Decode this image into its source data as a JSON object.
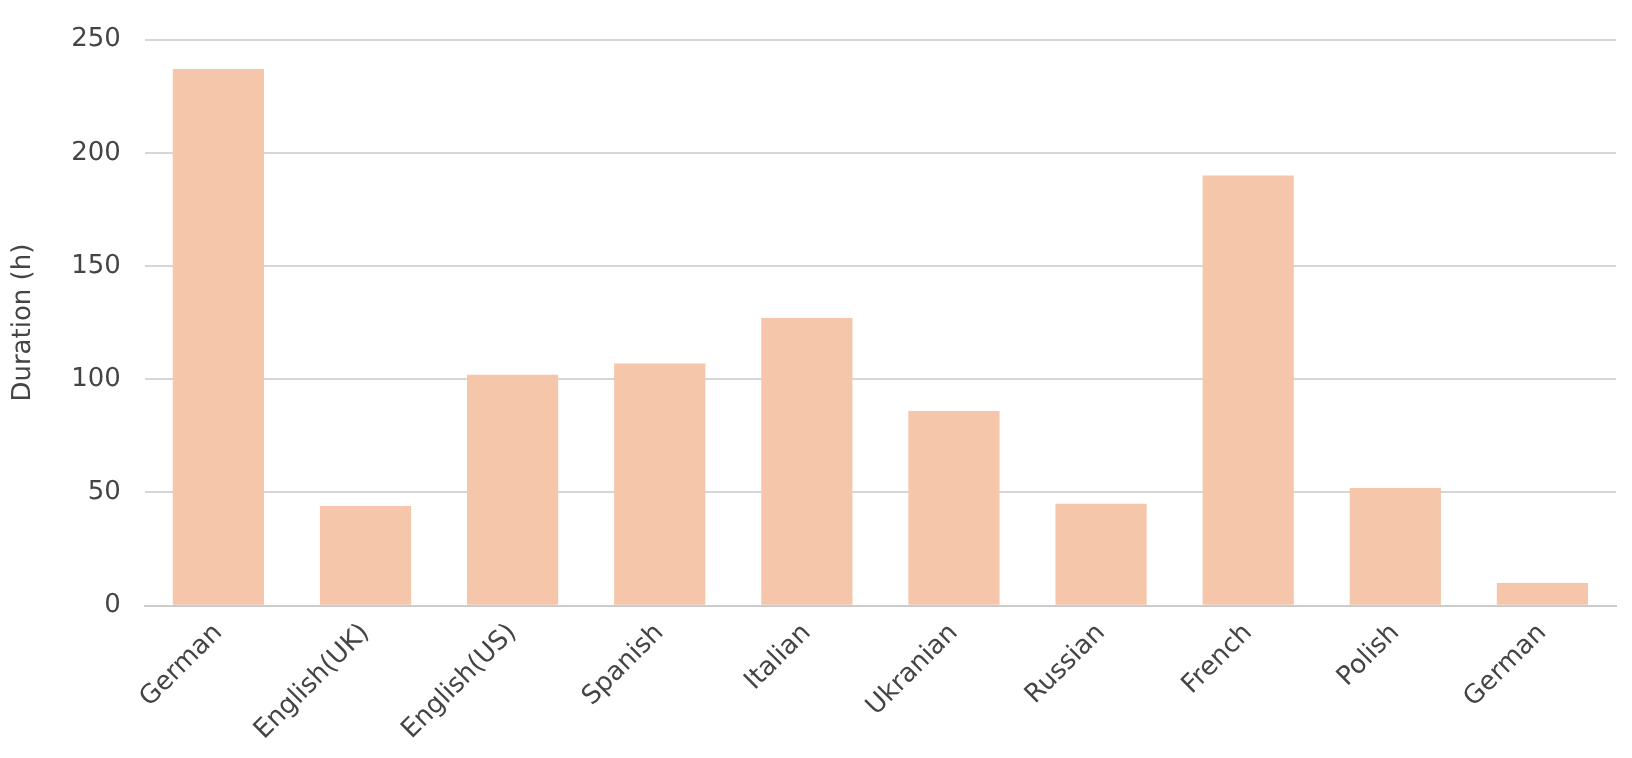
{
  "chart_data": {
    "type": "bar",
    "ylabel": "Duration (h)",
    "categories": [
      "German",
      "English(UK)",
      "English(US)",
      "Spanish",
      "Italian",
      "Ukranian",
      "Russian",
      "French",
      "Polish",
      "German"
    ],
    "values": [
      237,
      44,
      102,
      107,
      127,
      86,
      45,
      190,
      52,
      10
    ],
    "color": "#f6c6ab",
    "ylim": [
      0,
      250
    ],
    "yticks": [
      0,
      50,
      100,
      150,
      200,
      250
    ],
    "grid": "y"
  }
}
